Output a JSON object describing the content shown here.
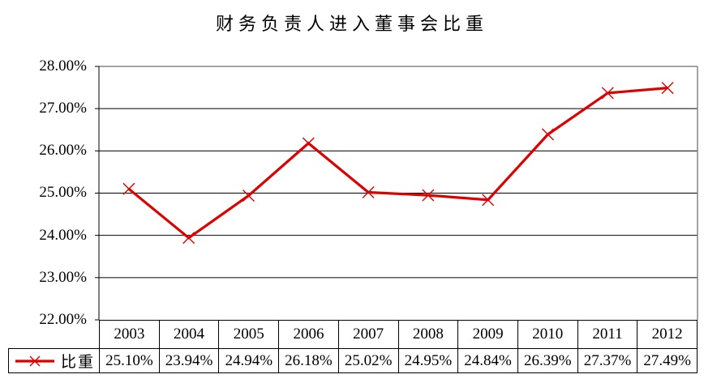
{
  "chart_data": {
    "type": "line",
    "title": "财务负责人进入董事会比重",
    "categories": [
      "2003",
      "2004",
      "2005",
      "2006",
      "2007",
      "2008",
      "2009",
      "2010",
      "2011",
      "2012"
    ],
    "series": [
      {
        "name": "比重",
        "values": [
          25.1,
          23.94,
          24.94,
          26.18,
          25.02,
          24.95,
          24.84,
          26.39,
          27.37,
          27.49
        ],
        "color": "#dd0000",
        "marker": "x"
      }
    ],
    "value_labels": [
      "25.10%",
      "23.94%",
      "24.94%",
      "26.18%",
      "25.02%",
      "24.95%",
      "24.84%",
      "26.39%",
      "27.37%",
      "27.49%"
    ],
    "ylim": [
      22,
      28
    ],
    "ytick_step": 1,
    "ytick_labels": [
      "28.00%",
      "27.00%",
      "26.00%",
      "25.00%",
      "24.00%",
      "23.00%",
      "22.00%"
    ],
    "xlabel": "",
    "ylabel": "",
    "grid": "horizontal-only",
    "legend_position": "data-table-left",
    "colors": {
      "series": "#dd0000",
      "gridline": "#000000",
      "plot_border_gray": "#858585",
      "axis_black": "#000000",
      "text": "#000000",
      "background": "#ffffff"
    }
  }
}
